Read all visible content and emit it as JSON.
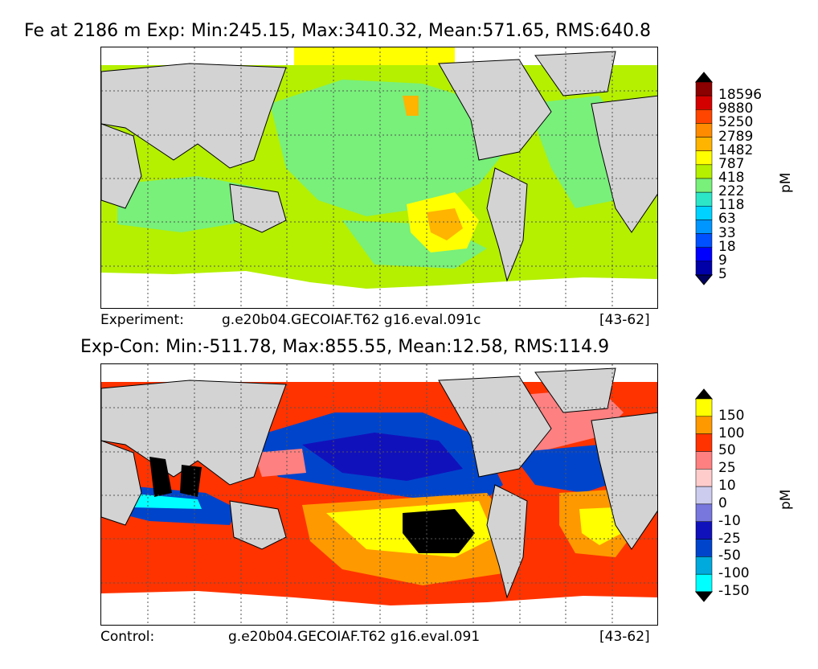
{
  "top_panel": {
    "title": "Fe at 2186 m Exp: Min:245.15, Max:3410.32, Mean:571.65, RMS:640.8",
    "caption_label": "Experiment:",
    "caption_case": "g.e20b04.GECOIAF.T62 g16.eval.091c",
    "caption_years": "[43-62]",
    "colorbar": {
      "unit": "pM",
      "labels": [
        "18596",
        "9880",
        "5250",
        "2789",
        "1482",
        "787",
        "418",
        "222",
        "118",
        "63",
        "33",
        "18",
        "9",
        "5"
      ],
      "colors": [
        "#000000",
        "#8b0000",
        "#d40000",
        "#ff4500",
        "#ff8c00",
        "#ffb400",
        "#ffff00",
        "#b4f000",
        "#78f07a",
        "#2de6c8",
        "#00d2ff",
        "#0096ff",
        "#0050ff",
        "#0000ff",
        "#0000a8",
        "#000060"
      ]
    }
  },
  "bottom_panel": {
    "title": "Exp-Con: Min:-511.78, Max:855.55, Mean:12.58, RMS:114.9",
    "caption_label": "Control:",
    "caption_case": "g.e20b04.GECOIAF.T62 g16.eval.091",
    "caption_years": "[43-62]",
    "colorbar": {
      "unit": "pM",
      "labels": [
        "150",
        "100",
        "50",
        "25",
        "10",
        "0",
        "-10",
        "-25",
        "-50",
        "-100",
        "-150"
      ],
      "colors": [
        "#000000",
        "#ffff00",
        "#ff9900",
        "#ff3300",
        "#ff8080",
        "#ffcccc",
        "#ccccee",
        "#7777dd",
        "#1111bb",
        "#0044cc",
        "#00aadd",
        "#00ffff",
        "#000000"
      ]
    }
  },
  "colors": {
    "land": "#d3d3d3",
    "no_data": "#ffffff",
    "grid": "#555555"
  }
}
